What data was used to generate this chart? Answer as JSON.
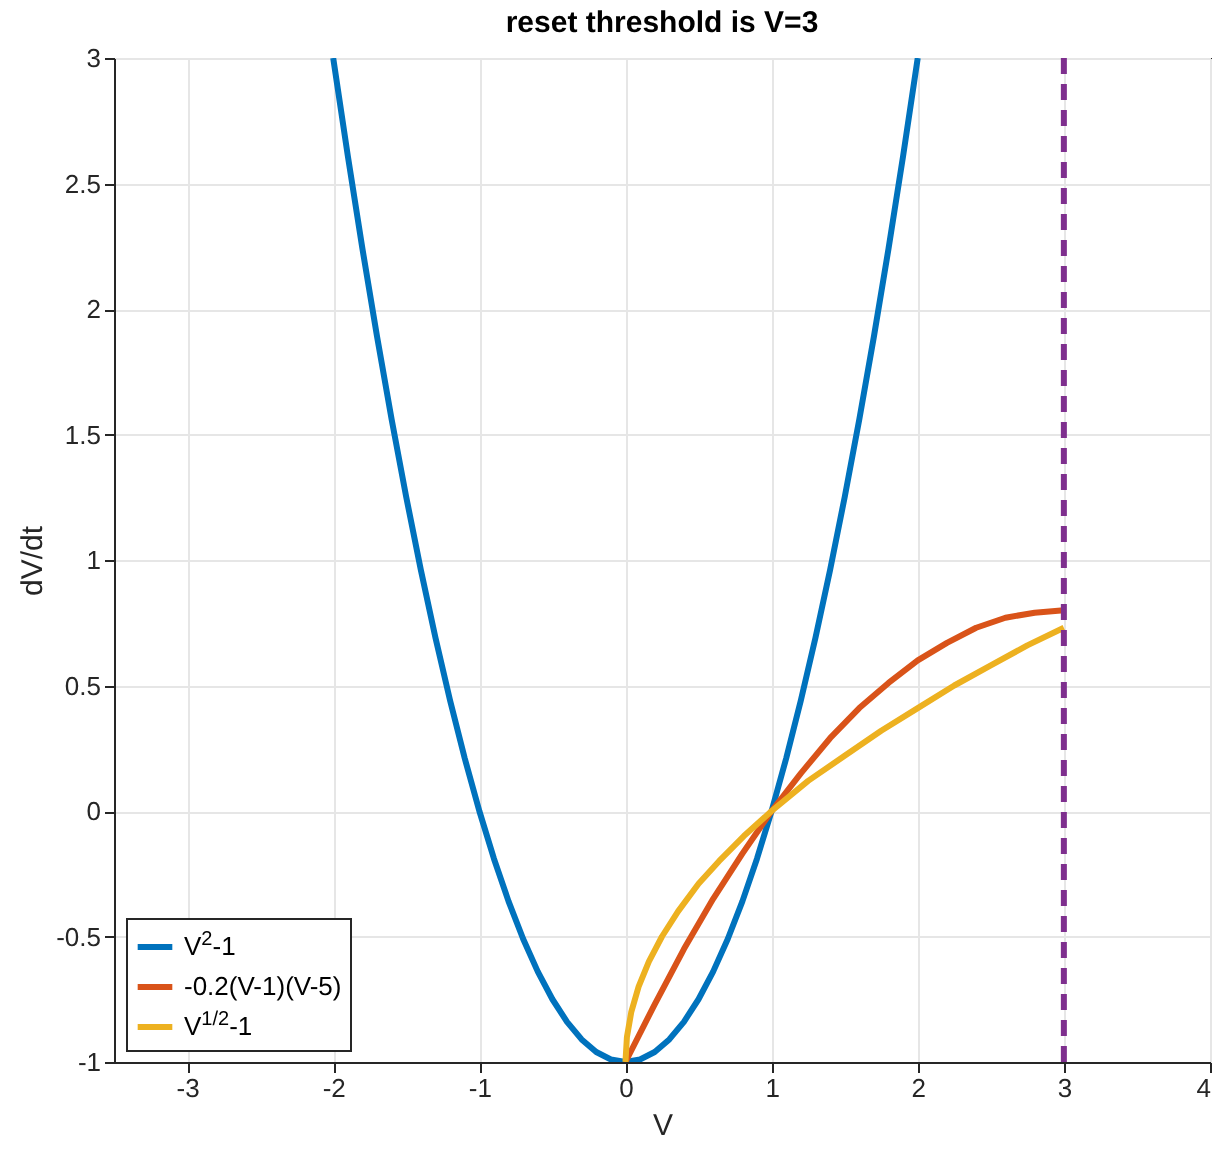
{
  "chart_data": {
    "type": "line",
    "title": "reset threshold is V=3",
    "xlabel": "V",
    "ylabel": "dV/dt",
    "xlim": [
      -3.5,
      4
    ],
    "xticks": [
      -3,
      -2,
      -1,
      0,
      1,
      2,
      3,
      4
    ],
    "ylim": [
      -1,
      3
    ],
    "yticks": [
      -1,
      -0.5,
      0,
      0.5,
      1,
      1.5,
      2,
      2.5,
      3
    ],
    "grid": true,
    "legend": "bottom left",
    "series": [
      {
        "name": "V$^{2}$-1",
        "color": "#0072bd",
        "x": [
          -2,
          -1.9,
          -1.8,
          -1.7,
          -1.6,
          -1.5,
          -1.4,
          -1.3,
          -1.2,
          -1.1,
          -1,
          -0.9,
          -0.8,
          -0.7,
          -0.6,
          -0.5,
          -0.4,
          -0.3,
          -0.2,
          -0.1,
          0,
          0.1,
          0.2,
          0.3,
          0.4,
          0.5,
          0.6,
          0.7,
          0.8,
          0.9,
          1,
          1.1,
          1.2,
          1.3,
          1.4,
          1.5,
          1.6,
          1.7,
          1.8,
          1.9,
          2
        ],
        "values": [
          3,
          2.61,
          2.24,
          1.89,
          1.56,
          1.25,
          0.96,
          0.69,
          0.44,
          0.21,
          0,
          -0.19,
          -0.36,
          -0.51,
          -0.64,
          -0.75,
          -0.84,
          -0.91,
          -0.96,
          -0.99,
          -1,
          -0.99,
          -0.96,
          -0.91,
          -0.84,
          -0.75,
          -0.64,
          -0.51,
          -0.36,
          -0.19,
          0,
          0.21,
          0.44,
          0.69,
          0.96,
          1.25,
          1.56,
          1.89,
          2.24,
          2.61,
          3
        ]
      },
      {
        "name": "-0.2(V-1)(V-5)",
        "color": "#d95319",
        "x": [
          0,
          0.2,
          0.4,
          0.6,
          0.8,
          1,
          1.2,
          1.4,
          1.6,
          1.8,
          2,
          2.2,
          2.4,
          2.6,
          2.8,
          3
        ],
        "values": [
          -1,
          -0.77,
          -0.55,
          -0.35,
          -0.17,
          0,
          0.15,
          0.29,
          0.41,
          0.51,
          0.6,
          0.67,
          0.73,
          0.77,
          0.79,
          0.8
        ]
      },
      {
        "name": "V$^{1/2}$-1",
        "color": "#edb120",
        "x": [
          0,
          0.01,
          0.04,
          0.09,
          0.16,
          0.25,
          0.36,
          0.5,
          0.64,
          0.81,
          1,
          1.25,
          1.5,
          1.75,
          2,
          2.25,
          2.5,
          2.75,
          3
        ],
        "values": [
          -1,
          -0.9,
          -0.8,
          -0.7,
          -0.6,
          -0.5,
          -0.4,
          -0.29,
          -0.2,
          -0.1,
          0,
          0.12,
          0.22,
          0.32,
          0.41,
          0.5,
          0.58,
          0.66,
          0.73
        ]
      }
    ],
    "ref_lines": [
      {
        "axis": "x",
        "value": 3,
        "color": "#7e2f8e",
        "line_style": "dashed"
      }
    ]
  }
}
